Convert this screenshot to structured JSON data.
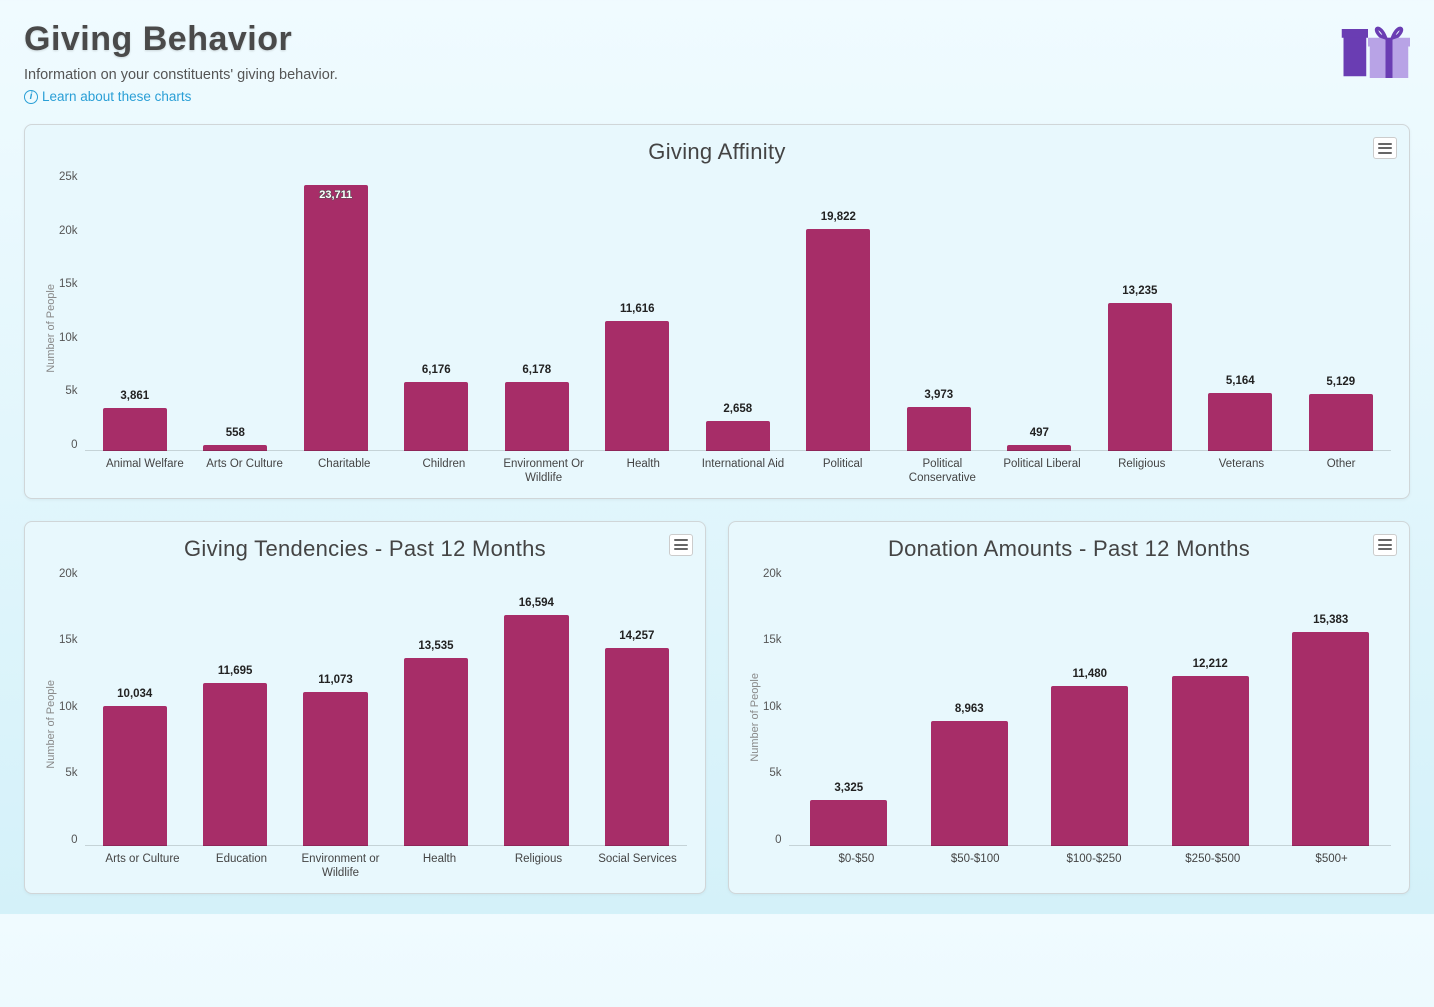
{
  "header": {
    "title": "Giving Behavior",
    "subtitle": "Information on your constituents' giving behavior.",
    "learn_link": "Learn about these charts"
  },
  "colors": {
    "bar": "#a72d68",
    "card_bg": "#e8f8fd",
    "page_bg_top": "#f0fbff",
    "page_bg_bot": "#d4f1f9",
    "accent_link": "#2a9fd6",
    "icon_dark": "#6a3db3",
    "icon_light": "#b8a3e6"
  },
  "affinity": {
    "type": "bar",
    "title": "Giving Affinity",
    "ylabel": "Number of People",
    "ylim": [
      0,
      25000
    ],
    "ytick_step": 5000,
    "yticks": [
      "25k",
      "20k",
      "15k",
      "10k",
      "5k",
      "0"
    ],
    "bar_color": "#a72d68",
    "bar_width": 0.64,
    "font_size_value": 11.5,
    "categories": [
      "Animal Welfare",
      "Arts Or Culture",
      "Charitable",
      "Children",
      "Environment Or Wildlife",
      "Health",
      "International Aid",
      "Political",
      "Political Conservative",
      "Political Liberal",
      "Religious",
      "Veterans",
      "Other"
    ],
    "values": [
      3861,
      558,
      23711,
      6176,
      6178,
      11616,
      2658,
      19822,
      3973,
      497,
      13235,
      5164,
      5129
    ],
    "value_labels": [
      "3,861",
      "558",
      "23,711",
      "6,176",
      "6,178",
      "11,616",
      "2,658",
      "19,822",
      "3,973",
      "497",
      "13,235",
      "5,164",
      "5,129"
    ],
    "inside_label_index": 2
  },
  "tendencies": {
    "type": "bar",
    "title": "Giving Tendencies - Past 12 Months",
    "ylabel": "Number of People",
    "ylim": [
      0,
      20000
    ],
    "ytick_step": 5000,
    "yticks": [
      "20k",
      "15k",
      "10k",
      "5k",
      "0"
    ],
    "bar_color": "#a72d68",
    "bar_width": 0.64,
    "font_size_value": 11.5,
    "categories": [
      "Arts or Culture",
      "Education",
      "Environment or Wildlife",
      "Health",
      "Religious",
      "Social Services"
    ],
    "values": [
      10034,
      11695,
      11073,
      13535,
      16594,
      14257
    ],
    "value_labels": [
      "10,034",
      "11,695",
      "11,073",
      "13,535",
      "16,594",
      "14,257"
    ]
  },
  "donations": {
    "type": "bar",
    "title": "Donation Amounts - Past 12 Months",
    "ylabel": "Number of People",
    "ylim": [
      0,
      20000
    ],
    "ytick_step": 5000,
    "yticks": [
      "20k",
      "15k",
      "10k",
      "5k",
      "0"
    ],
    "bar_color": "#a72d68",
    "bar_width": 0.64,
    "font_size_value": 11.5,
    "categories": [
      "$0-$50",
      "$50-$100",
      "$100-$250",
      "$250-$500",
      "$500+"
    ],
    "values": [
      3325,
      8963,
      11480,
      12212,
      15383
    ],
    "value_labels": [
      "3,325",
      "8,963",
      "11,480",
      "12,212",
      "15,383"
    ]
  }
}
